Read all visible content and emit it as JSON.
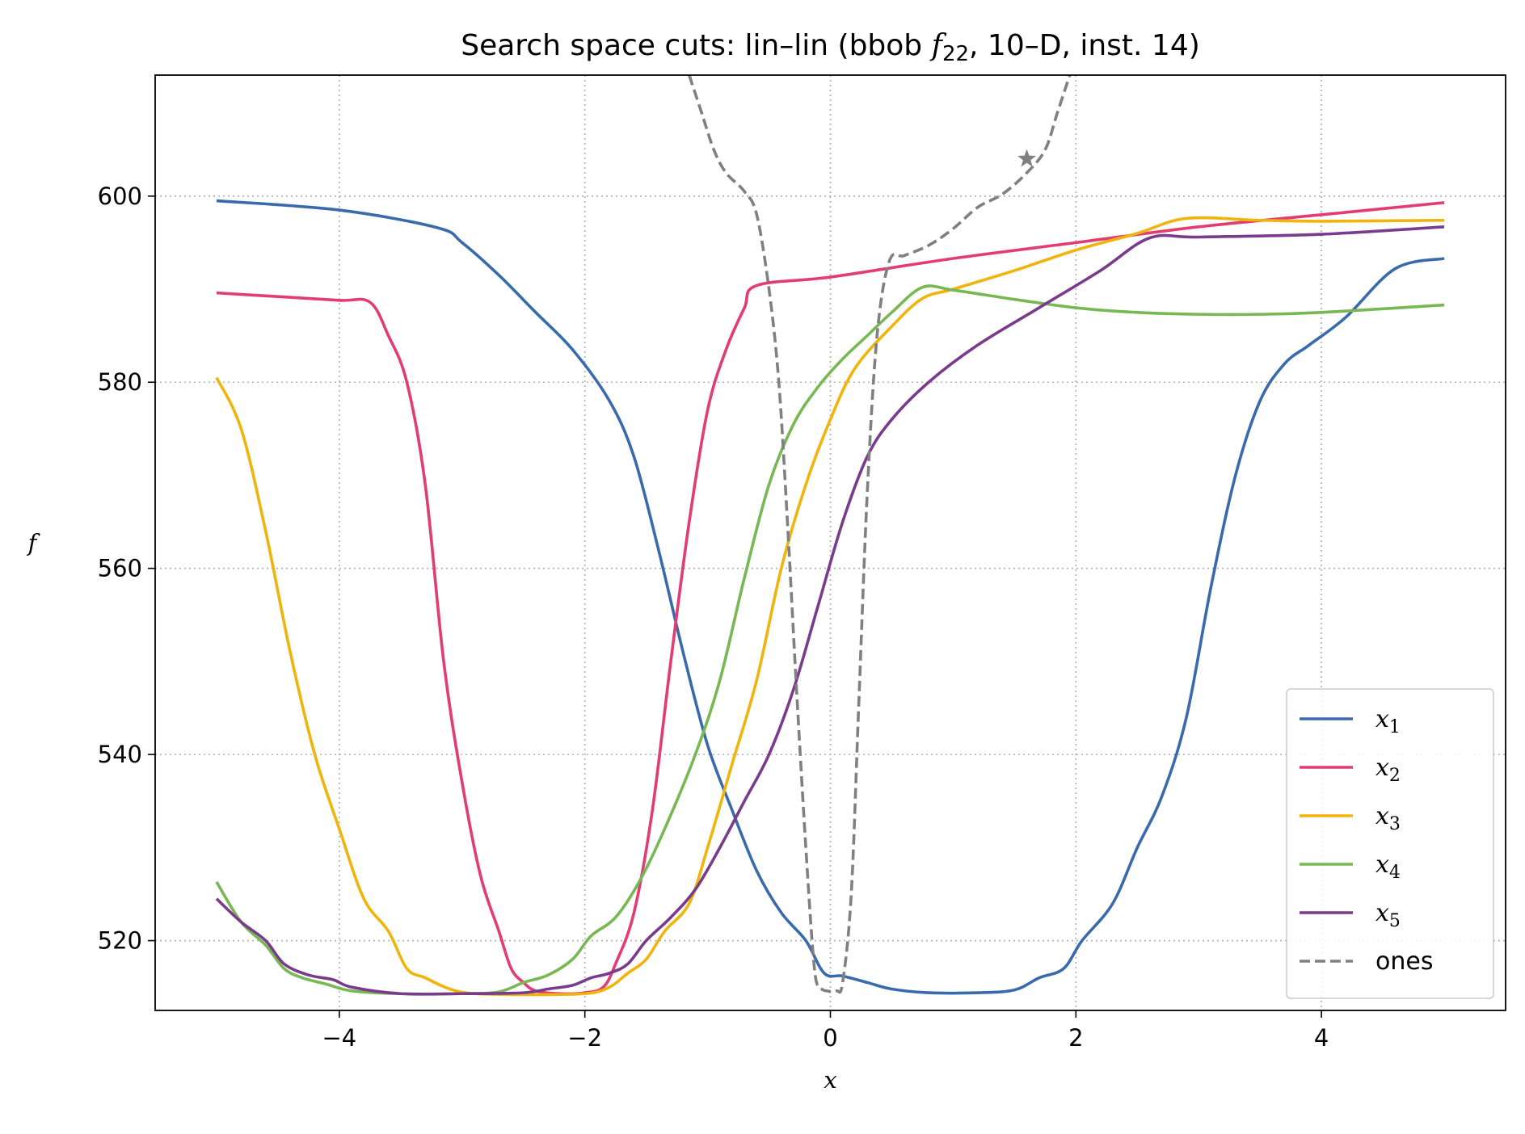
{
  "chart_data": {
    "type": "line",
    "title": {
      "prefix": "Search space cuts: lin–lin (bbob ",
      "func_symbol": "f",
      "func_subscript": "22",
      "suffix": ", 10–D, inst. 14)"
    },
    "xlabel": "x",
    "ylabel": "f",
    "xlim": [
      -5.5,
      5.5
    ],
    "ylim": [
      512.5,
      613.0
    ],
    "xticks": [
      -4,
      -2,
      0,
      2,
      4
    ],
    "xtick_labels": [
      "−4",
      "−2",
      "0",
      "2",
      "4"
    ],
    "yticks": [
      520,
      540,
      560,
      580,
      600
    ],
    "ytick_labels": [
      "520",
      "540",
      "560",
      "580",
      "600"
    ],
    "grid": true,
    "legend_position": "lower right",
    "series": [
      {
        "name": "x1",
        "legend_base": "x",
        "legend_sub": "1",
        "color": "#3a6aae",
        "dash": "solid",
        "points": [
          [
            -5,
            599.5
          ],
          [
            -4,
            598.5
          ],
          [
            -3.2,
            596.6
          ],
          [
            -3,
            595
          ],
          [
            -2.7,
            591.5
          ],
          [
            -2.4,
            587.5
          ],
          [
            -2.1,
            583.5
          ],
          [
            -1.8,
            578
          ],
          [
            -1.6,
            572
          ],
          [
            -1.4,
            562
          ],
          [
            -1.2,
            551
          ],
          [
            -1,
            541
          ],
          [
            -0.8,
            534
          ],
          [
            -0.6,
            527.5
          ],
          [
            -0.4,
            523
          ],
          [
            -0.2,
            520
          ],
          [
            -0.05,
            516.5
          ],
          [
            0.1,
            516.2
          ],
          [
            0.3,
            515.5
          ],
          [
            0.5,
            514.8
          ],
          [
            0.8,
            514.4
          ],
          [
            1.2,
            514.4
          ],
          [
            1.5,
            514.7
          ],
          [
            1.7,
            516
          ],
          [
            1.9,
            517
          ],
          [
            2.05,
            520
          ],
          [
            2.3,
            524
          ],
          [
            2.5,
            530
          ],
          [
            2.7,
            535.5
          ],
          [
            2.9,
            544
          ],
          [
            3.1,
            558
          ],
          [
            3.3,
            570
          ],
          [
            3.5,
            578
          ],
          [
            3.7,
            582
          ],
          [
            3.9,
            584
          ],
          [
            4.2,
            587
          ],
          [
            4.6,
            592.2
          ],
          [
            5,
            593.3
          ]
        ]
      },
      {
        "name": "x2",
        "legend_base": "x",
        "legend_sub": "2",
        "color": "#e23c73",
        "dash": "solid",
        "points": [
          [
            -5,
            589.6
          ],
          [
            -4.5,
            589.2
          ],
          [
            -4,
            588.8
          ],
          [
            -3.75,
            588.6
          ],
          [
            -3.6,
            585
          ],
          [
            -3.45,
            580
          ],
          [
            -3.3,
            569
          ],
          [
            -3.15,
            550
          ],
          [
            -3,
            537
          ],
          [
            -2.85,
            527
          ],
          [
            -2.7,
            521
          ],
          [
            -2.6,
            517
          ],
          [
            -2.5,
            515.5
          ],
          [
            -2.4,
            514.6
          ],
          [
            -2.2,
            514.3
          ],
          [
            -2,
            514.4
          ],
          [
            -1.85,
            515
          ],
          [
            -1.75,
            517.5
          ],
          [
            -1.6,
            523
          ],
          [
            -1.45,
            534
          ],
          [
            -1.3,
            550
          ],
          [
            -1.15,
            565
          ],
          [
            -1,
            577
          ],
          [
            -0.85,
            583.5
          ],
          [
            -0.7,
            588
          ],
          [
            -0.6,
            590.4
          ],
          [
            0,
            591.3
          ],
          [
            1,
            593.3
          ],
          [
            2,
            595
          ],
          [
            3,
            596.7
          ],
          [
            4,
            598
          ],
          [
            5,
            599.3
          ]
        ]
      },
      {
        "name": "x3",
        "legend_base": "x",
        "legend_sub": "3",
        "color": "#f0b40c",
        "dash": "solid",
        "points": [
          [
            -5,
            580.5
          ],
          [
            -4.8,
            575
          ],
          [
            -4.6,
            564
          ],
          [
            -4.4,
            551
          ],
          [
            -4.2,
            540
          ],
          [
            -4,
            532
          ],
          [
            -3.8,
            524.5
          ],
          [
            -3.6,
            521
          ],
          [
            -3.45,
            517
          ],
          [
            -3.3,
            516
          ],
          [
            -3.1,
            514.8
          ],
          [
            -2.9,
            514.3
          ],
          [
            -2.5,
            514.2
          ],
          [
            -2,
            514.3
          ],
          [
            -1.8,
            515
          ],
          [
            -1.65,
            516.5
          ],
          [
            -1.5,
            518
          ],
          [
            -1.35,
            521
          ],
          [
            -1.15,
            524
          ],
          [
            -1,
            530
          ],
          [
            -0.8,
            539
          ],
          [
            -0.6,
            548
          ],
          [
            -0.4,
            560
          ],
          [
            -0.2,
            569
          ],
          [
            0,
            576
          ],
          [
            0.2,
            581.5
          ],
          [
            0.5,
            586
          ],
          [
            0.75,
            589
          ],
          [
            1,
            590
          ],
          [
            1.5,
            592
          ],
          [
            2,
            594.2
          ],
          [
            2.5,
            596
          ],
          [
            2.9,
            597.6
          ],
          [
            3.5,
            597.4
          ],
          [
            4,
            597.3
          ],
          [
            5,
            597.4
          ]
        ]
      },
      {
        "name": "x4",
        "legend_base": "x",
        "legend_sub": "4",
        "color": "#77b853",
        "dash": "solid",
        "points": [
          [
            -5,
            526.3
          ],
          [
            -4.8,
            522
          ],
          [
            -4.6,
            519.5
          ],
          [
            -4.45,
            517
          ],
          [
            -4.3,
            516
          ],
          [
            -4.1,
            515.3
          ],
          [
            -3.9,
            514.6
          ],
          [
            -3.5,
            514.3
          ],
          [
            -3,
            514.3
          ],
          [
            -2.7,
            514.5
          ],
          [
            -2.5,
            515.5
          ],
          [
            -2.3,
            516.3
          ],
          [
            -2.1,
            518
          ],
          [
            -1.95,
            520.5
          ],
          [
            -1.75,
            522.5
          ],
          [
            -1.55,
            526.5
          ],
          [
            -1.35,
            532
          ],
          [
            -1.1,
            540
          ],
          [
            -0.9,
            548
          ],
          [
            -0.7,
            559
          ],
          [
            -0.5,
            569
          ],
          [
            -0.3,
            575.5
          ],
          [
            -0.1,
            579.5
          ],
          [
            0.1,
            582.5
          ],
          [
            0.3,
            585
          ],
          [
            0.5,
            587.5
          ],
          [
            0.75,
            590.2
          ],
          [
            1,
            589.9
          ],
          [
            1.5,
            588.9
          ],
          [
            2,
            588
          ],
          [
            2.5,
            587.5
          ],
          [
            3,
            587.3
          ],
          [
            3.5,
            587.3
          ],
          [
            4,
            587.5
          ],
          [
            5,
            588.3
          ]
        ]
      },
      {
        "name": "x5",
        "legend_base": "x",
        "legend_sub": "5",
        "color": "#7a3b8c",
        "dash": "solid",
        "points": [
          [
            -5,
            524.5
          ],
          [
            -4.8,
            522
          ],
          [
            -4.6,
            520
          ],
          [
            -4.45,
            517.5
          ],
          [
            -4.25,
            516.3
          ],
          [
            -4.05,
            515.8
          ],
          [
            -3.9,
            515
          ],
          [
            -3.5,
            514.3
          ],
          [
            -3,
            514.3
          ],
          [
            -2.5,
            514.4
          ],
          [
            -2.3,
            514.8
          ],
          [
            -2.1,
            515.2
          ],
          [
            -1.95,
            516
          ],
          [
            -1.8,
            516.5
          ],
          [
            -1.65,
            517.5
          ],
          [
            -1.5,
            520
          ],
          [
            -1.3,
            522.5
          ],
          [
            -1.1,
            525.5
          ],
          [
            -0.9,
            530
          ],
          [
            -0.7,
            535
          ],
          [
            -0.5,
            540
          ],
          [
            -0.3,
            547
          ],
          [
            -0.1,
            556
          ],
          [
            0.1,
            565
          ],
          [
            0.3,
            572
          ],
          [
            0.5,
            576
          ],
          [
            0.8,
            580
          ],
          [
            1.2,
            584
          ],
          [
            1.7,
            588
          ],
          [
            2.2,
            592
          ],
          [
            2.6,
            595.5
          ],
          [
            3,
            595.6
          ],
          [
            4,
            595.9
          ],
          [
            5,
            596.7
          ]
        ]
      },
      {
        "name": "ones",
        "legend_label": "ones",
        "color": "#808080",
        "dash": "dashed",
        "points": [
          [
            -1.15,
            613
          ],
          [
            -1.05,
            609
          ],
          [
            -0.95,
            605
          ],
          [
            -0.85,
            602.5
          ],
          [
            -0.7,
            600.5
          ],
          [
            -0.6,
            598
          ],
          [
            -0.5,
            590
          ],
          [
            -0.42,
            580
          ],
          [
            -0.35,
            565
          ],
          [
            -0.28,
            548
          ],
          [
            -0.2,
            530
          ],
          [
            -0.13,
            517
          ],
          [
            -0.08,
            515
          ],
          [
            -0.03,
            514.6
          ],
          [
            0.05,
            514.6
          ],
          [
            0.1,
            515.5
          ],
          [
            0.17,
            525
          ],
          [
            0.23,
            545
          ],
          [
            0.3,
            568
          ],
          [
            0.38,
            585
          ],
          [
            0.48,
            593
          ],
          [
            0.6,
            593.6
          ],
          [
            0.8,
            594.7
          ],
          [
            1,
            596.5
          ],
          [
            1.2,
            598.8
          ],
          [
            1.4,
            600.2
          ],
          [
            1.6,
            602.5
          ],
          [
            1.75,
            605
          ],
          [
            1.85,
            609
          ],
          [
            1.95,
            613
          ]
        ]
      }
    ],
    "markers": [
      {
        "series": "ones",
        "shape": "star",
        "x": 1.6,
        "y": 604
      }
    ]
  }
}
